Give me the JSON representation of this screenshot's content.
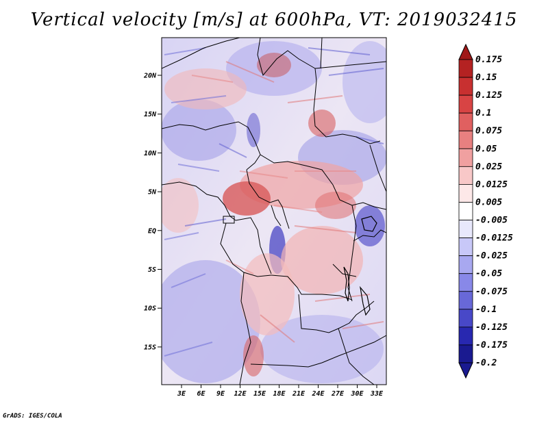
{
  "title": "Vertical velocity [m/s] at 600hPa, VT: 2019032415",
  "credit": "GrADS: IGES/COLA",
  "map": {
    "lat_labels": [
      "20N",
      "15N",
      "10N",
      "5N",
      "EQ",
      "5S",
      "10S",
      "15S"
    ],
    "lon_labels": [
      "3E",
      "6E",
      "9E",
      "12E",
      "15E",
      "18E",
      "21E",
      "24E",
      "27E",
      "30E",
      "33E"
    ]
  },
  "colorbar": {
    "labels": [
      "0.175",
      "0.15",
      "0.125",
      "0.1",
      "0.075",
      "0.05",
      "0.025",
      "0.0125",
      "0.005",
      "-0.005",
      "-0.0125",
      "-0.025",
      "-0.05",
      "-0.075",
      "-0.1",
      "-0.125",
      "-0.175",
      "-0.2"
    ],
    "colors": [
      "#a01818",
      "#b42222",
      "#c83030",
      "#d84444",
      "#e06060",
      "#e88080",
      "#f0a0a0",
      "#f8c8c8",
      "#fde8e8",
      "#ffffff",
      "#e8e8fc",
      "#c8c8f8",
      "#a8a8f0",
      "#8888e8",
      "#6868d8",
      "#4848c8",
      "#2828b0",
      "#1a1a90"
    ]
  }
}
